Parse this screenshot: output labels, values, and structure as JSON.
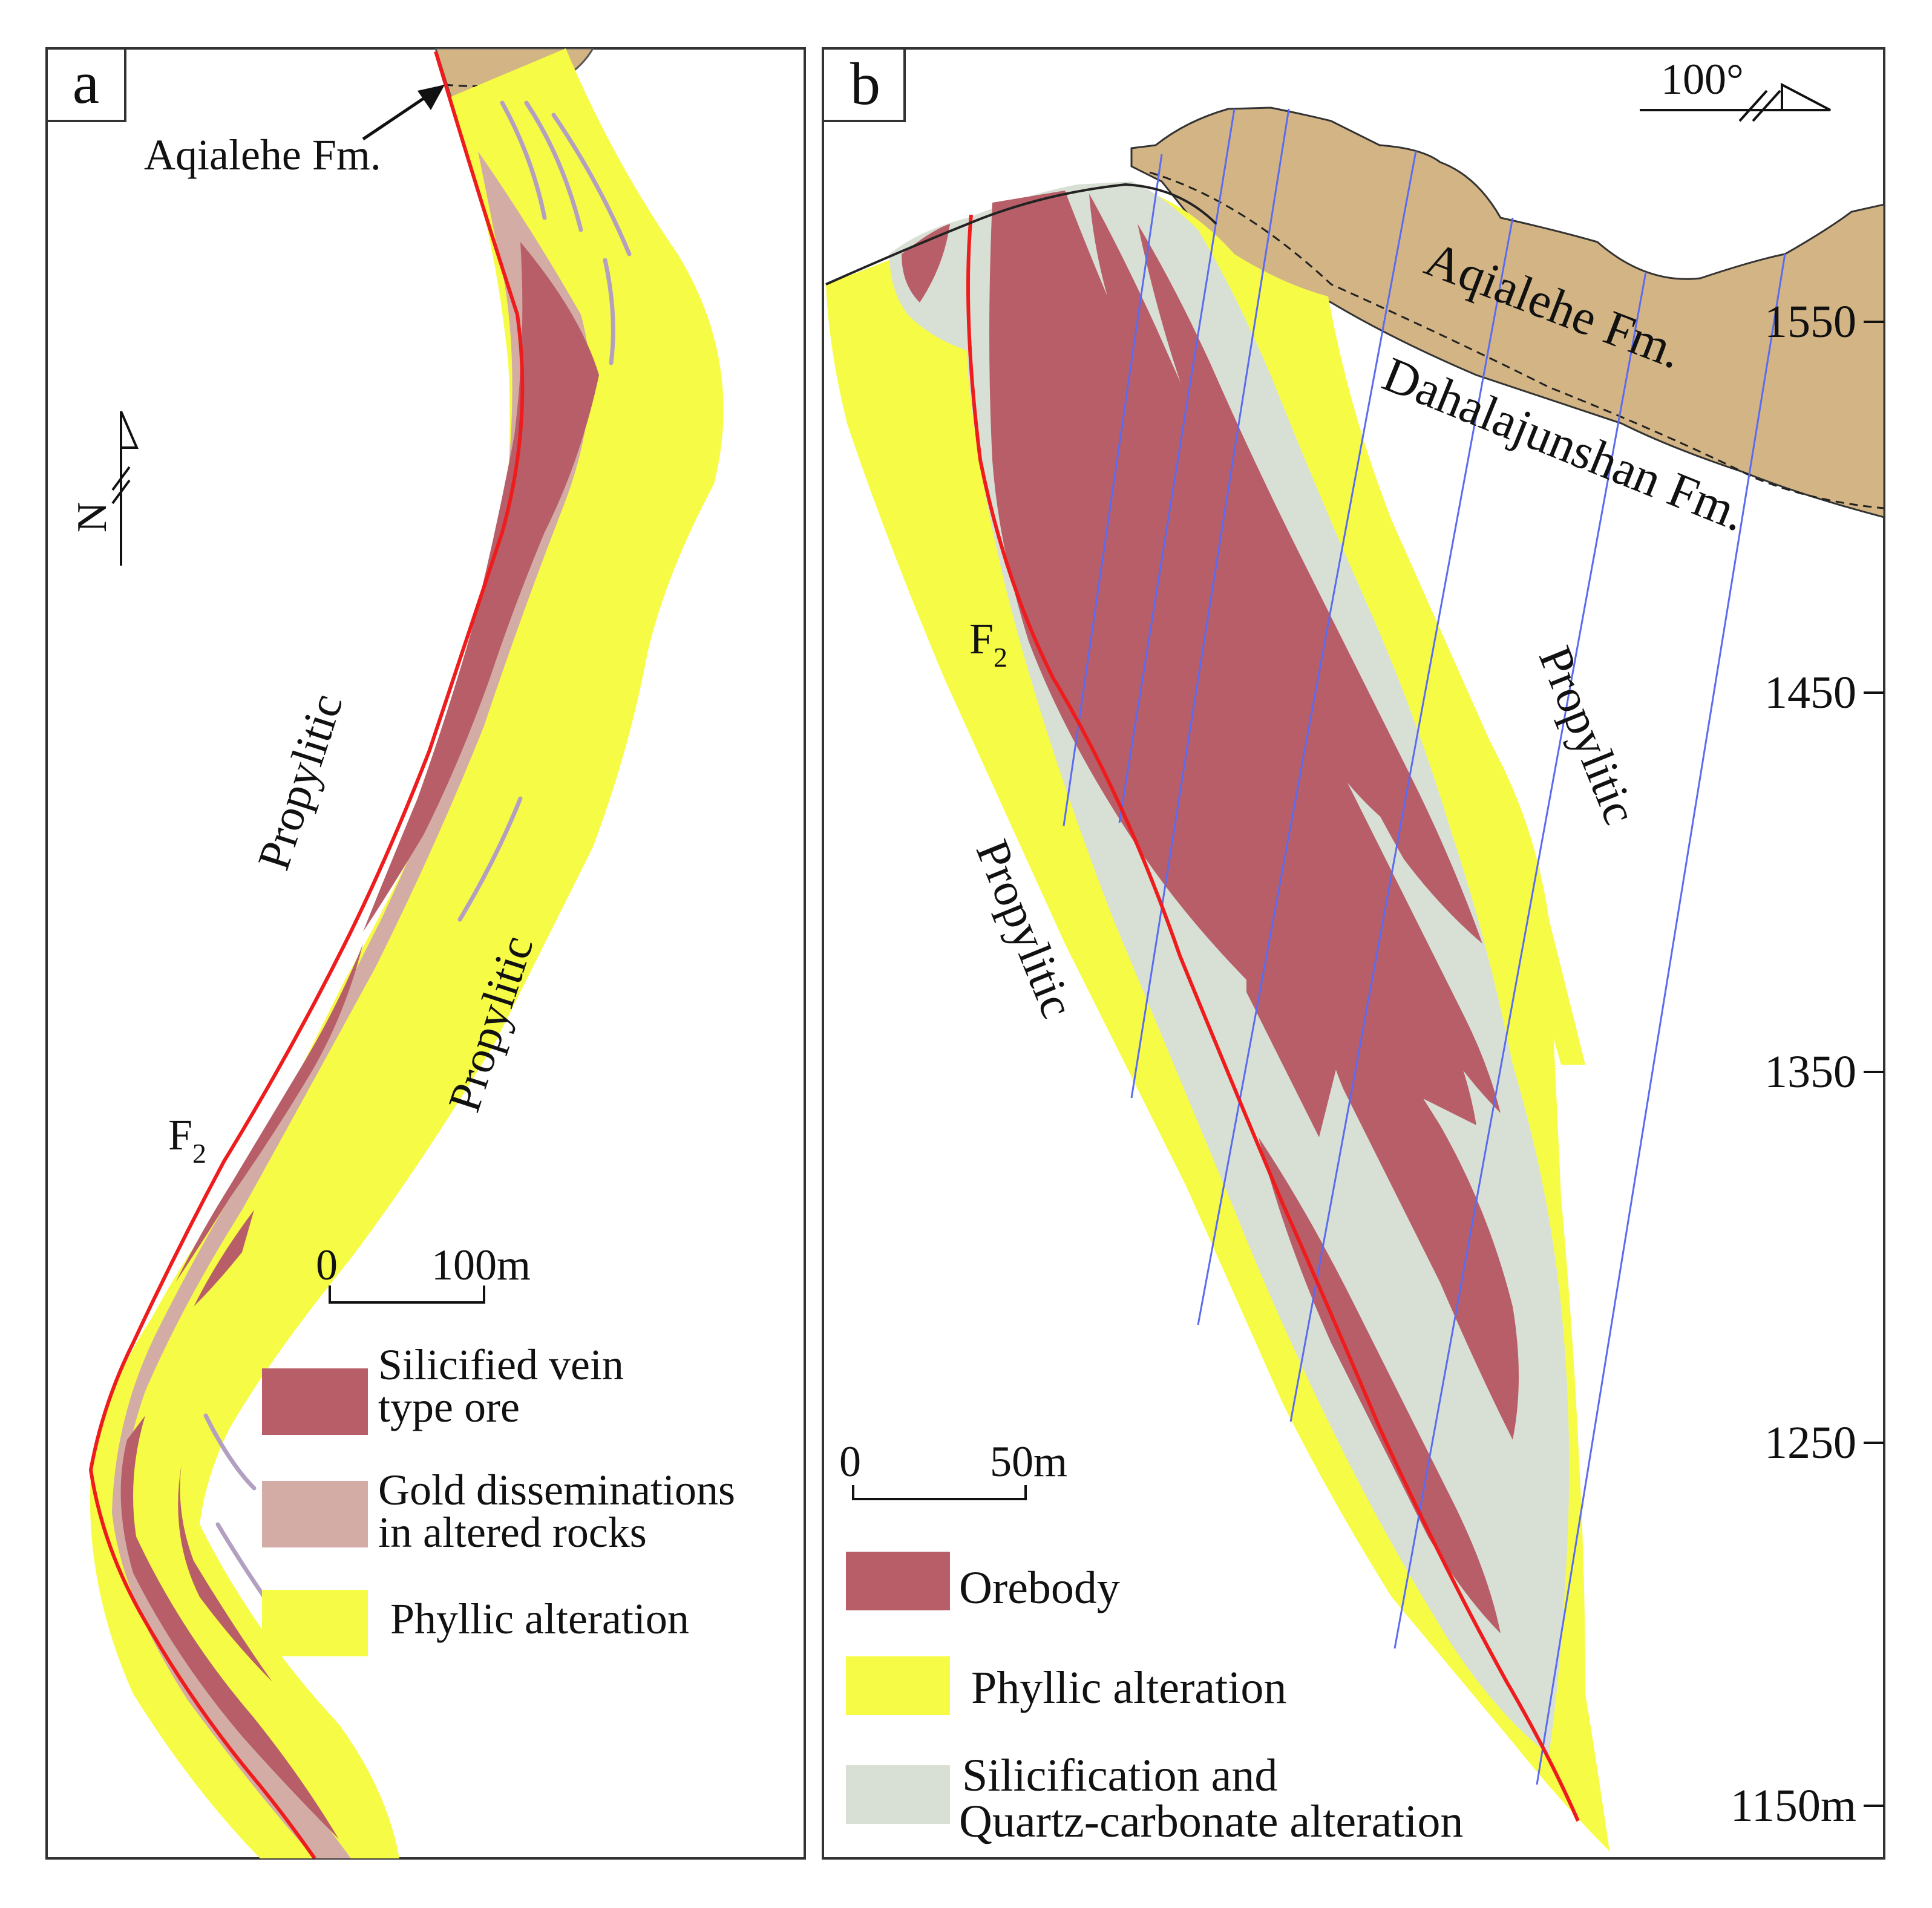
{
  "colors": {
    "orebody": "#b85e68",
    "gold_dissemination": "#d2aca5",
    "phyllic": "#f6fc45",
    "silicification": "#d8e0d6",
    "formation": "#d3b585",
    "fault": "#ee1c1c",
    "drillhole": "#5a6bf0",
    "frame": "#333333"
  },
  "panel_a": {
    "label": "a",
    "formation_callout": "Aqialehe Fm.",
    "north_arrow": "N",
    "fault_label": "F",
    "fault_sub": "2",
    "propylitic_left": "Propylitic",
    "propylitic_right": "Propylitic",
    "scale": {
      "zero": "0",
      "end": "100m"
    },
    "legend": [
      {
        "lines": [
          "Silicified vein",
          "type ore"
        ],
        "color_key": "orebody"
      },
      {
        "lines": [
          "Gold disseminations",
          "in altered rocks"
        ],
        "color_key": "gold_dissemination"
      },
      {
        "lines": [
          "Phyllic alteration"
        ],
        "color_key": "phyllic"
      }
    ]
  },
  "panel_b": {
    "label": "b",
    "azimuth": "100°",
    "formation_upper": "Aqialehe Fm.",
    "formation_lower": "Dahalajunshan Fm.",
    "fault_label": "F",
    "fault_sub": "2",
    "propylitic_left": "Propylitic",
    "propylitic_right": "Propylitic",
    "elevations": [
      "1550",
      "1450",
      "1350",
      "1250",
      "1150m"
    ],
    "scale": {
      "zero": "0",
      "end": "50m"
    },
    "legend": [
      {
        "lines": [
          "Orebody"
        ],
        "color_key": "orebody"
      },
      {
        "lines": [
          "Phyllic alteration"
        ],
        "color_key": "phyllic"
      },
      {
        "lines": [
          "Silicification and",
          "Quartz-carbonate alteration"
        ],
        "color_key": "silicification"
      }
    ]
  }
}
